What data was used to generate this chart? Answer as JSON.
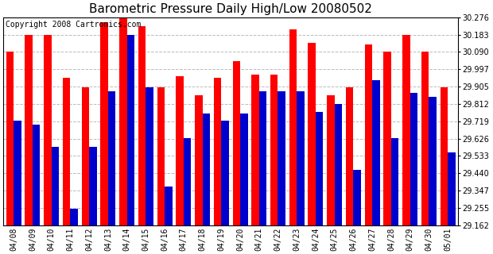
{
  "title": "Barometric Pressure Daily High/Low 20080502",
  "copyright": "Copyright 2008 Cartronics.com",
  "categories": [
    "04/08",
    "04/09",
    "04/10",
    "04/11",
    "04/12",
    "04/13",
    "04/14",
    "04/15",
    "04/16",
    "04/17",
    "04/18",
    "04/19",
    "04/20",
    "04/21",
    "04/22",
    "04/23",
    "04/24",
    "04/25",
    "04/26",
    "04/27",
    "04/28",
    "04/29",
    "04/30",
    "05/01"
  ],
  "highs": [
    30.09,
    30.18,
    30.18,
    29.95,
    29.9,
    30.25,
    30.27,
    30.23,
    29.9,
    29.96,
    29.86,
    29.95,
    30.04,
    29.97,
    29.97,
    30.21,
    30.14,
    29.86,
    29.9,
    30.13,
    30.09,
    30.18,
    30.09,
    29.9
  ],
  "lows": [
    29.72,
    29.7,
    29.58,
    29.25,
    29.58,
    29.88,
    30.18,
    29.9,
    29.37,
    29.63,
    29.76,
    29.72,
    29.76,
    29.88,
    29.88,
    29.88,
    29.77,
    29.81,
    29.46,
    29.94,
    29.63,
    29.87,
    29.85,
    29.55
  ],
  "high_color": "#ff0000",
  "low_color": "#0000cc",
  "background_color": "#ffffff",
  "plot_bg_color": "#ffffff",
  "grid_color": "#aaaaaa",
  "ymin": 29.162,
  "ymax": 30.276,
  "yticks": [
    29.162,
    29.255,
    29.347,
    29.44,
    29.533,
    29.626,
    29.719,
    29.812,
    29.905,
    29.997,
    30.09,
    30.183,
    30.276
  ],
  "title_fontsize": 11,
  "tick_fontsize": 7,
  "copyright_fontsize": 7
}
